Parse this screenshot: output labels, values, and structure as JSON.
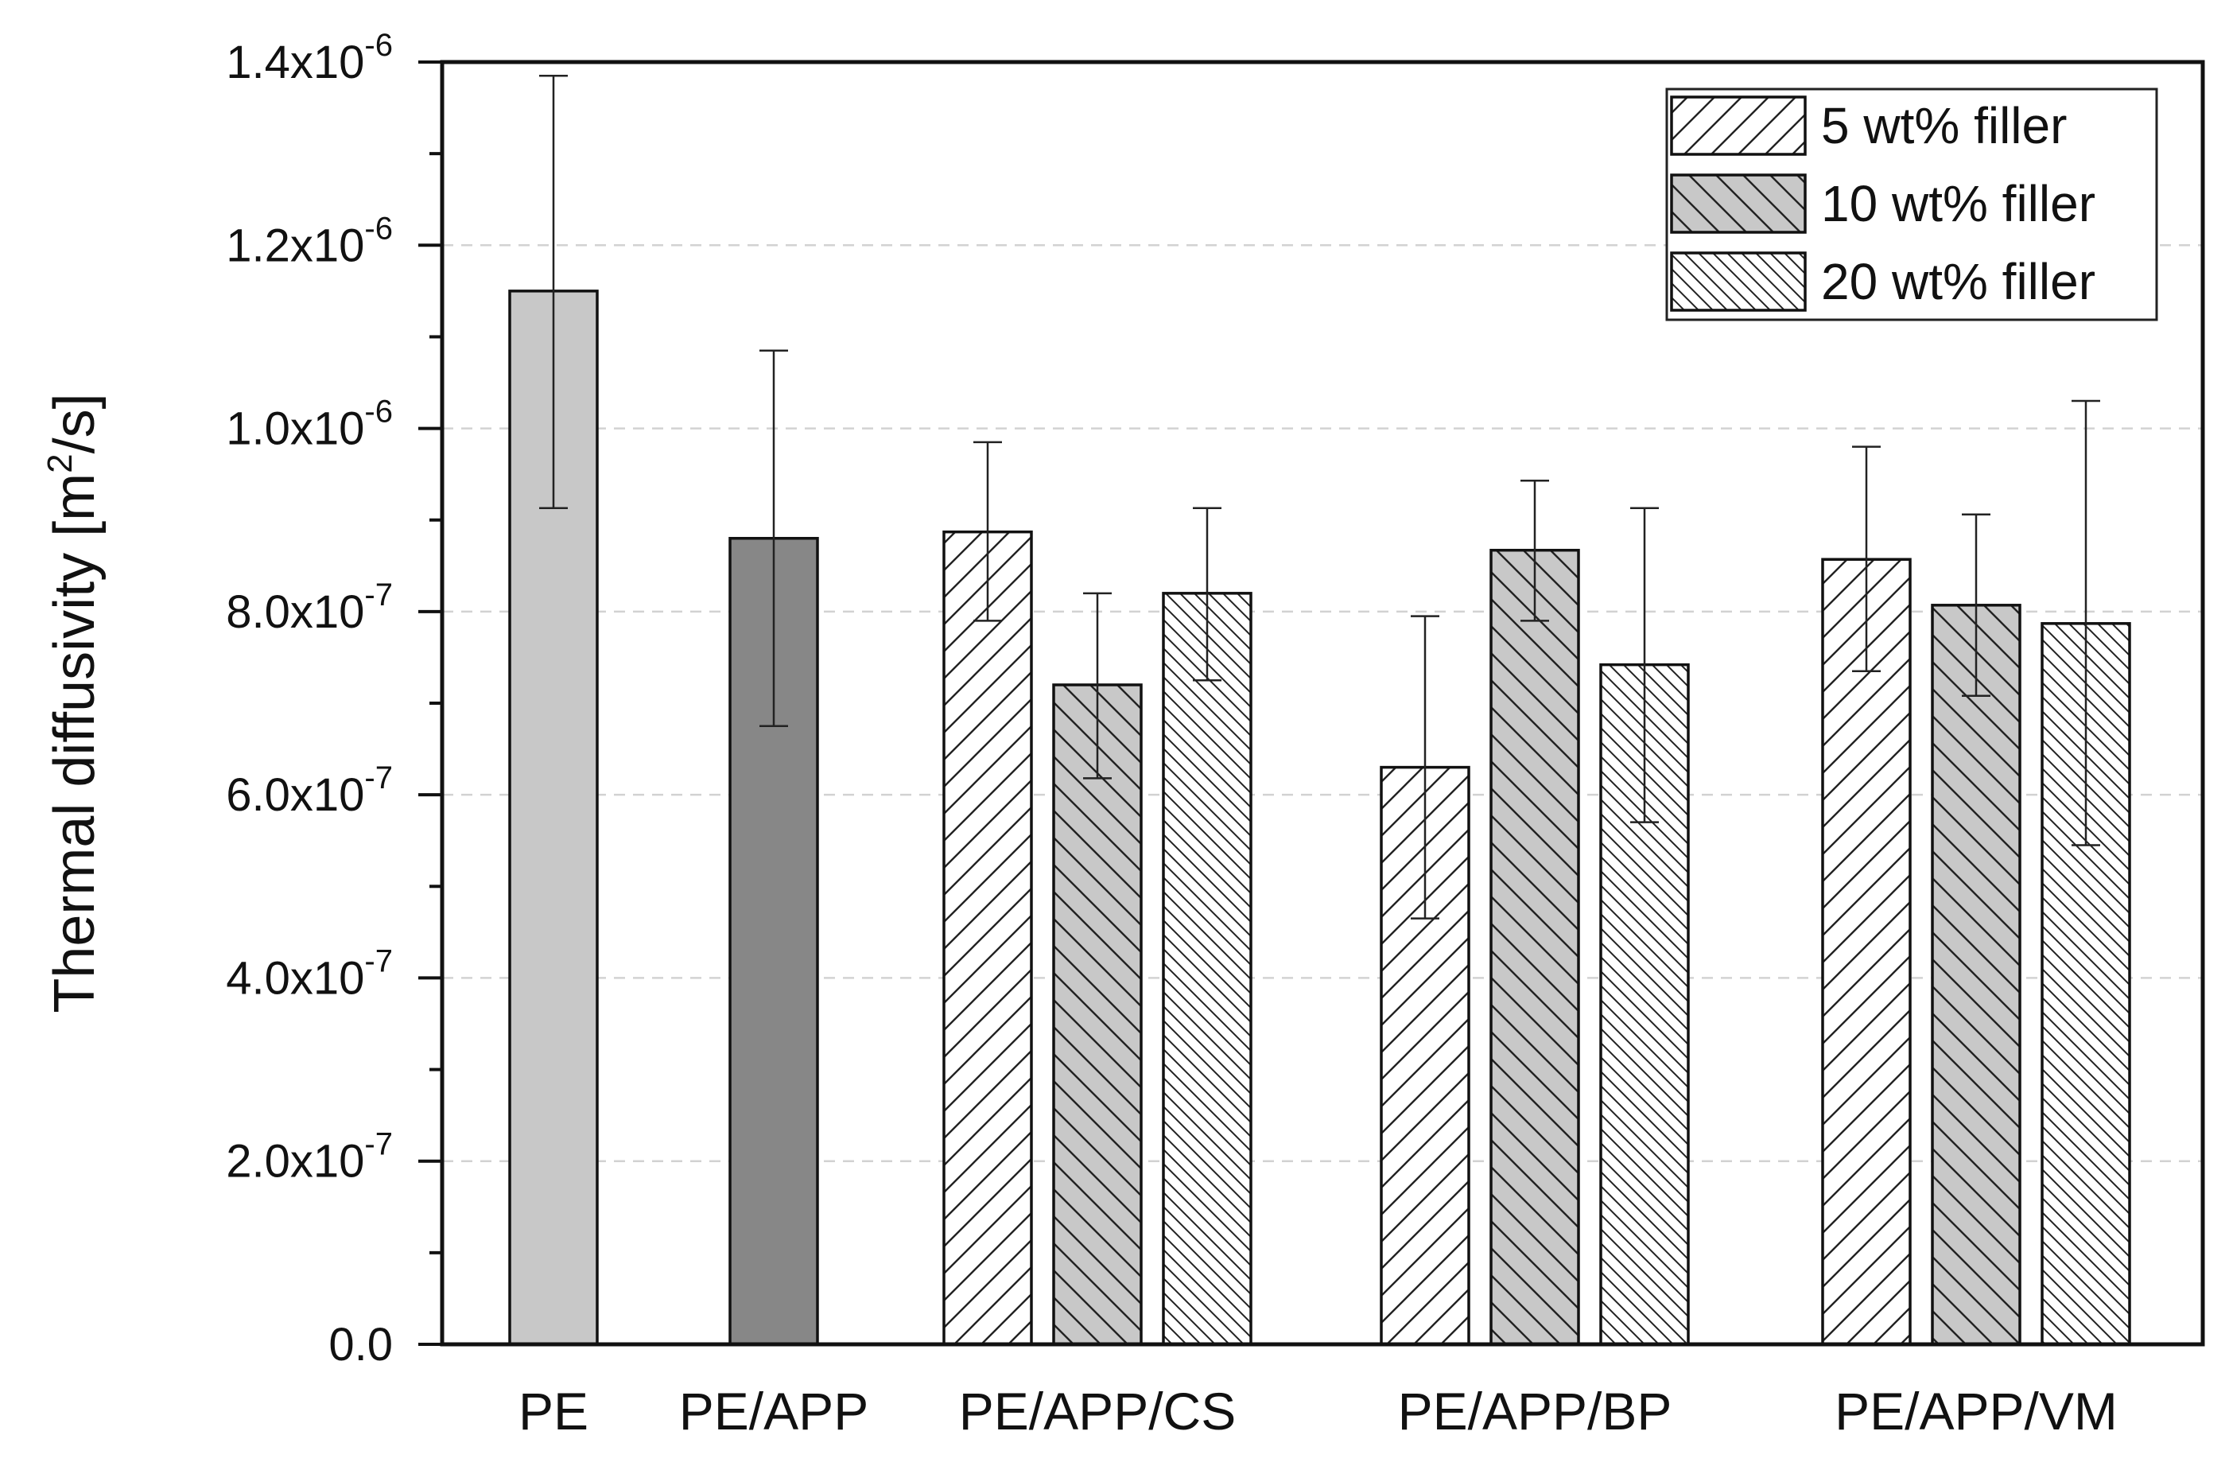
{
  "chart_data": {
    "type": "bar",
    "title": "",
    "xlabel": "",
    "ylabel": {
      "prefix": "Thermal diffusivity [m",
      "sup": "2",
      "suffix": "/s]"
    },
    "ylim": [
      0,
      1.4e-06
    ],
    "grid": true,
    "legend_position": "top-right",
    "y_ticks": [
      {
        "value": 0,
        "mantissa": "0.0",
        "exp": ""
      },
      {
        "value": 2e-07,
        "mantissa": "2.0x10",
        "exp": "-7"
      },
      {
        "value": 4e-07,
        "mantissa": "4.0x10",
        "exp": "-7"
      },
      {
        "value": 6e-07,
        "mantissa": "6.0x10",
        "exp": "-7"
      },
      {
        "value": 8e-07,
        "mantissa": "8.0x10",
        "exp": "-7"
      },
      {
        "value": 1e-06,
        "mantissa": "1.0x10",
        "exp": "-6"
      },
      {
        "value": 1.2e-06,
        "mantissa": "1.2x10",
        "exp": "-6"
      },
      {
        "value": 1.4e-06,
        "mantissa": "1.4x10",
        "exp": "-6"
      }
    ],
    "categories": [
      "PE",
      "PE/APP",
      "PE/APP/CS",
      "PE/APP/BP",
      "PE/APP/VM"
    ],
    "reference_bars": [
      {
        "category": "PE",
        "value": 1.15e-06,
        "err_low": 9.13e-07,
        "err_high": 1.385e-06,
        "fill": "#c8c8c8"
      },
      {
        "category": "PE/APP",
        "value": 8.8e-07,
        "err_low": 6.75e-07,
        "err_high": 1.085e-06,
        "fill": "#878787"
      }
    ],
    "series": [
      {
        "name": "5 wt% filler",
        "pattern": "diag-up",
        "fill": "#ffffff",
        "values": [
          {
            "category": "PE/APP/CS",
            "value": 8.87e-07,
            "err_low": 7.9e-07,
            "err_high": 9.85e-07
          },
          {
            "category": "PE/APP/BP",
            "value": 6.3e-07,
            "err_low": 4.65e-07,
            "err_high": 7.95e-07
          },
          {
            "category": "PE/APP/VM",
            "value": 8.57e-07,
            "err_low": 7.35e-07,
            "err_high": 9.8e-07
          }
        ]
      },
      {
        "name": "10 wt% filler",
        "pattern": "diag-down",
        "fill": "#c8c8c8",
        "values": [
          {
            "category": "PE/APP/CS",
            "value": 7.2e-07,
            "err_low": 6.18e-07,
            "err_high": 8.2e-07
          },
          {
            "category": "PE/APP/BP",
            "value": 8.67e-07,
            "err_low": 7.9e-07,
            "err_high": 9.43e-07
          },
          {
            "category": "PE/APP/VM",
            "value": 8.07e-07,
            "err_low": 7.08e-07,
            "err_high": 9.06e-07
          }
        ]
      },
      {
        "name": "20 wt% filler",
        "pattern": "diag-down-dense",
        "fill": "#ffffff",
        "values": [
          {
            "category": "PE/APP/CS",
            "value": 8.2e-07,
            "err_low": 7.25e-07,
            "err_high": 9.13e-07
          },
          {
            "category": "PE/APP/BP",
            "value": 7.42e-07,
            "err_low": 5.7e-07,
            "err_high": 9.13e-07
          },
          {
            "category": "PE/APP/VM",
            "value": 7.87e-07,
            "err_low": 5.45e-07,
            "err_high": 1.03e-06
          }
        ]
      }
    ]
  }
}
